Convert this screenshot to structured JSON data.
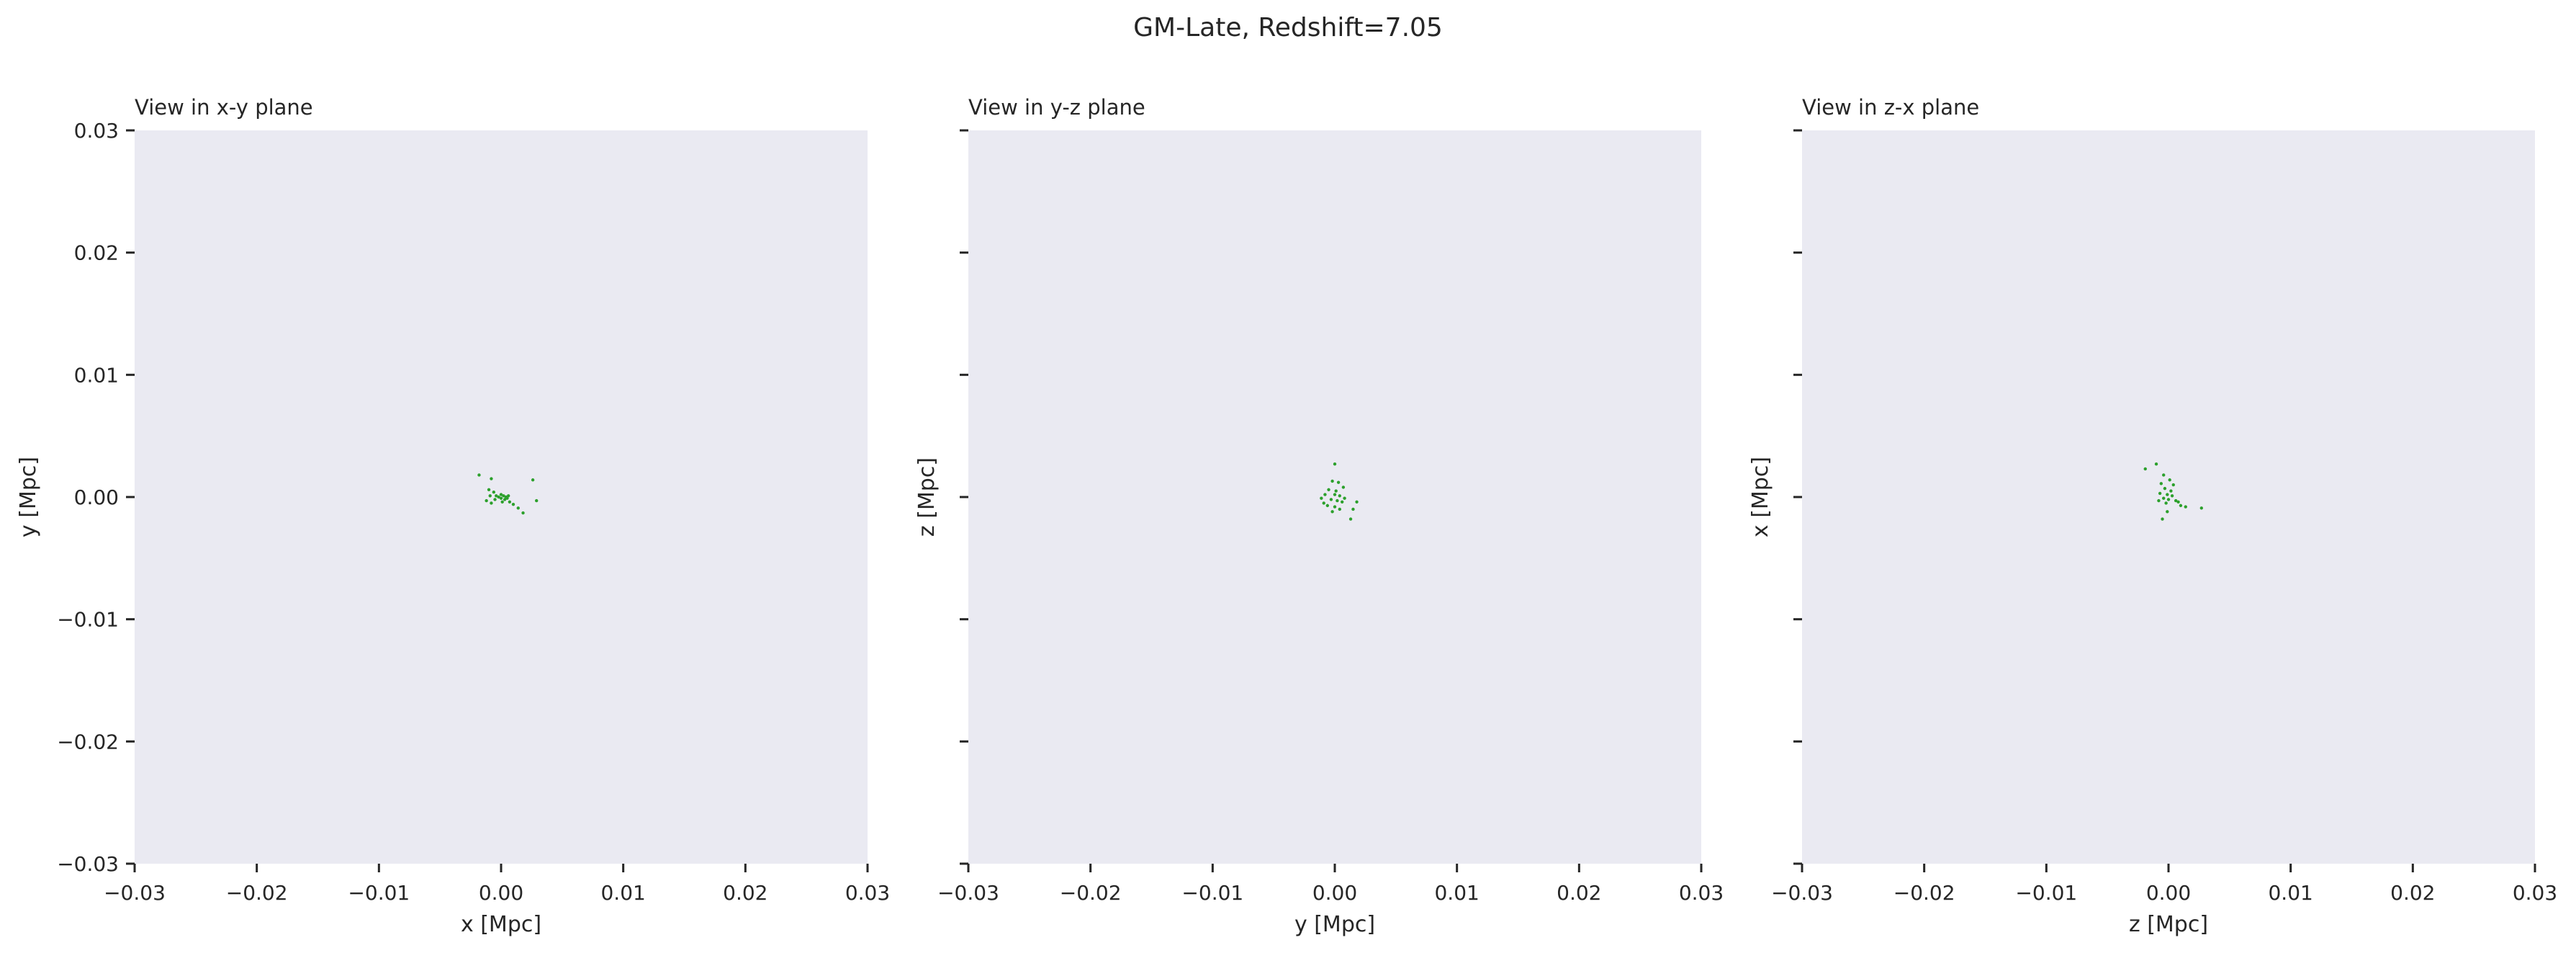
{
  "suptitle": "GM-Late, Redshift=7.05",
  "colors": {
    "plot_background": "#eaeaf2",
    "points": "#2ca02c",
    "text": "#262626"
  },
  "chart_data": [
    {
      "type": "scatter",
      "title": "View in x-y plane",
      "xlabel": "x [Mpc]",
      "ylabel": "y [Mpc]",
      "xlim": [
        -0.03,
        0.03
      ],
      "ylim": [
        -0.03,
        0.03
      ],
      "xticks": [
        "−0.03",
        "−0.02",
        "−0.01",
        "0.00",
        "0.01",
        "0.02",
        "0.03"
      ],
      "yticks": [
        "−0.03",
        "−0.02",
        "−0.01",
        "0.00",
        "0.01",
        "0.02",
        "0.03"
      ],
      "show_ytick_labels": true,
      "grid": false,
      "points": [
        [
          -0.0018,
          0.0018
        ],
        [
          -0.0008,
          0.0015
        ],
        [
          -0.001,
          0.0006
        ],
        [
          -0.0006,
          0.0004
        ],
        [
          -0.0004,
          0.0001
        ],
        [
          -0.0002,
          0.0
        ],
        [
          0.0,
          0.0002
        ],
        [
          0.0002,
          0.0001
        ],
        [
          0.0004,
          0.0
        ],
        [
          0.0006,
          0.0001
        ],
        [
          -0.0012,
          -0.0003
        ],
        [
          -0.0008,
          -0.0005
        ],
        [
          -0.0005,
          -0.0002
        ],
        [
          0.0001,
          -0.0004
        ],
        [
          0.0003,
          -0.0002
        ],
        [
          0.0005,
          -0.0001
        ],
        [
          0.001,
          -0.0006
        ],
        [
          0.0014,
          -0.0009
        ],
        [
          0.0018,
          -0.0013
        ],
        [
          0.0026,
          0.0014
        ],
        [
          0.0029,
          -0.0003
        ],
        [
          -0.0009,
          0.0001
        ],
        [
          0.0,
          -0.0001
        ],
        [
          0.0007,
          -0.0004
        ]
      ]
    },
    {
      "type": "scatter",
      "title": "View in y-z plane",
      "xlabel": "y [Mpc]",
      "ylabel": "z [Mpc]",
      "xlim": [
        -0.03,
        0.03
      ],
      "ylim": [
        -0.03,
        0.03
      ],
      "xticks": [
        "−0.03",
        "−0.02",
        "−0.01",
        "0.00",
        "0.01",
        "0.02",
        "0.03"
      ],
      "yticks": [
        "−0.03",
        "−0.02",
        "−0.01",
        "0.00",
        "0.01",
        "0.02",
        "0.03"
      ],
      "show_ytick_labels": false,
      "grid": false,
      "points": [
        [
          0.0,
          0.0027
        ],
        [
          -0.0002,
          0.0013
        ],
        [
          0.0003,
          0.0012
        ],
        [
          0.0007,
          0.0008
        ],
        [
          -0.0005,
          0.0006
        ],
        [
          0.0001,
          0.0005
        ],
        [
          -0.0008,
          0.0002
        ],
        [
          0.0,
          0.0002
        ],
        [
          0.0004,
          0.0001
        ],
        [
          -0.0011,
          -0.0001
        ],
        [
          -0.0003,
          -0.0002
        ],
        [
          0.0002,
          -0.0003
        ],
        [
          0.0006,
          -0.0004
        ],
        [
          0.0018,
          -0.0004
        ],
        [
          -0.0006,
          -0.0007
        ],
        [
          0.0,
          -0.0008
        ],
        [
          0.0004,
          -0.001
        ],
        [
          -0.0002,
          -0.0012
        ],
        [
          0.0015,
          -0.001
        ],
        [
          0.0013,
          -0.0018
        ],
        [
          -0.0009,
          -0.0005
        ],
        [
          0.0008,
          -0.0001
        ]
      ]
    },
    {
      "type": "scatter",
      "title": "View in z-x plane",
      "xlabel": "z [Mpc]",
      "ylabel": "x [Mpc]",
      "xlim": [
        -0.03,
        0.03
      ],
      "ylim": [
        -0.03,
        0.03
      ],
      "xticks": [
        "−0.03",
        "−0.02",
        "−0.01",
        "0.00",
        "0.01",
        "0.02",
        "0.03"
      ],
      "yticks": [
        "−0.03",
        "−0.02",
        "−0.01",
        "0.00",
        "0.01",
        "0.02",
        "0.03"
      ],
      "show_ytick_labels": false,
      "grid": false,
      "points": [
        [
          -0.001,
          0.0027
        ],
        [
          -0.0019,
          0.0023
        ],
        [
          -0.0004,
          0.0018
        ],
        [
          0.0001,
          0.0014
        ],
        [
          -0.0006,
          0.0011
        ],
        [
          0.0004,
          0.001
        ],
        [
          -0.0003,
          0.0007
        ],
        [
          0.0002,
          0.0005
        ],
        [
          -0.0007,
          0.0003
        ],
        [
          -0.0001,
          0.0002
        ],
        [
          0.0003,
          0.0001
        ],
        [
          -0.0004,
          -0.0001
        ],
        [
          0.0,
          -0.0002
        ],
        [
          0.0006,
          -0.0003
        ],
        [
          -0.0002,
          -0.0005
        ],
        [
          0.001,
          -0.0007
        ],
        [
          0.0014,
          -0.0008
        ],
        [
          0.0027,
          -0.0009
        ],
        [
          -0.0001,
          -0.0012
        ],
        [
          -0.0005,
          -0.0018
        ],
        [
          0.0008,
          -0.0004
        ],
        [
          -0.0008,
          -0.0003
        ]
      ]
    }
  ]
}
